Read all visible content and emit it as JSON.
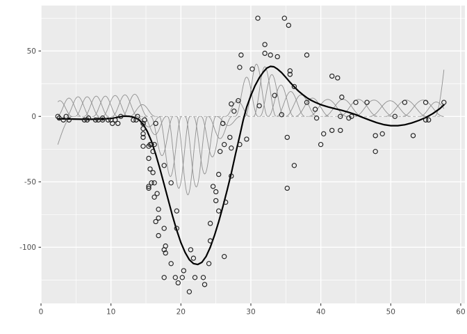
{
  "chart_data": {
    "type": "scatter",
    "title": "",
    "xlabel": "",
    "ylabel": "",
    "legend": false,
    "grid": true,
    "xlim": [
      0,
      60.6
    ],
    "ylim": [
      -142.9,
      84.7
    ],
    "x_ticks": [
      0,
      10,
      20,
      30,
      40,
      50,
      60
    ],
    "x_tick_labels": [
      "0",
      "10",
      "20",
      "30",
      "40",
      "50",
      "60"
    ],
    "x_minor_ticks": [
      5,
      15,
      25,
      35,
      45,
      55
    ],
    "y_ticks": [
      -100,
      -50,
      0,
      50
    ],
    "y_tick_labels": [
      "-100",
      "-50",
      "0",
      "50"
    ],
    "y_minor_ticks": [
      -125,
      -75,
      -25,
      25,
      75
    ],
    "colors": {
      "panel": "#ebebeb",
      "grid_major": "#ffffff",
      "grid_minor": "#f7f7f7",
      "point": "#1f1f1f",
      "smooth": "#000000",
      "basis": "#8f8f8f",
      "zero_line": "#aaaaaa",
      "tick_label": "#4d4d4d",
      "tick_mark": "#333333"
    },
    "series": [
      {
        "name": "observations",
        "kind": "points",
        "points": [
          [
            2.4,
            0.0
          ],
          [
            2.6,
            -1.3
          ],
          [
            3.2,
            -2.7
          ],
          [
            3.6,
            0.0
          ],
          [
            4.0,
            -2.7
          ],
          [
            6.2,
            -2.7
          ],
          [
            6.6,
            -2.7
          ],
          [
            6.8,
            -1.3
          ],
          [
            7.8,
            -2.7
          ],
          [
            8.2,
            -2.7
          ],
          [
            8.8,
            -1.3
          ],
          [
            8.8,
            -2.7
          ],
          [
            9.6,
            -2.7
          ],
          [
            10.0,
            -2.7
          ],
          [
            10.2,
            -5.4
          ],
          [
            10.6,
            -2.7
          ],
          [
            11.0,
            -5.4
          ],
          [
            11.4,
            0.0
          ],
          [
            13.2,
            -2.7
          ],
          [
            13.6,
            -2.7
          ],
          [
            13.8,
            0.0
          ],
          [
            14.6,
            -13.3
          ],
          [
            14.6,
            -5.4
          ],
          [
            14.6,
            -5.4
          ],
          [
            14.6,
            -9.3
          ],
          [
            14.6,
            -16.0
          ],
          [
            14.6,
            -22.8
          ],
          [
            14.8,
            -2.7
          ],
          [
            15.4,
            -22.8
          ],
          [
            15.4,
            -32.1
          ],
          [
            15.4,
            -53.5
          ],
          [
            15.4,
            -54.9
          ],
          [
            15.6,
            -40.2
          ],
          [
            15.6,
            -21.5
          ],
          [
            15.8,
            -21.5
          ],
          [
            15.8,
            -50.8
          ],
          [
            16.0,
            -42.9
          ],
          [
            16.0,
            -26.8
          ],
          [
            16.2,
            -21.5
          ],
          [
            16.2,
            -50.8
          ],
          [
            16.2,
            -61.7
          ],
          [
            16.4,
            -5.4
          ],
          [
            16.4,
            -80.4
          ],
          [
            16.6,
            -59.0
          ],
          [
            16.8,
            -71.0
          ],
          [
            16.8,
            -91.1
          ],
          [
            16.8,
            -77.7
          ],
          [
            17.6,
            -37.5
          ],
          [
            17.6,
            -85.6
          ],
          [
            17.6,
            -123.1
          ],
          [
            17.6,
            -101.9
          ],
          [
            17.8,
            -99.1
          ],
          [
            17.8,
            -104.4
          ],
          [
            18.6,
            -112.5
          ],
          [
            18.6,
            -50.8
          ],
          [
            19.2,
            -123.1
          ],
          [
            19.4,
            -85.6
          ],
          [
            19.4,
            -72.3
          ],
          [
            19.6,
            -127.2
          ],
          [
            20.2,
            -123.1
          ],
          [
            20.4,
            -117.9
          ],
          [
            21.2,
            -134.0
          ],
          [
            21.4,
            -101.9
          ],
          [
            21.8,
            -108.4
          ],
          [
            22.0,
            -123.1
          ],
          [
            23.2,
            -123.1
          ],
          [
            23.4,
            -128.5
          ],
          [
            24.0,
            -112.5
          ],
          [
            24.2,
            -95.1
          ],
          [
            24.2,
            -81.8
          ],
          [
            24.6,
            -53.5
          ],
          [
            25.0,
            -64.4
          ],
          [
            25.0,
            -57.6
          ],
          [
            25.4,
            -72.3
          ],
          [
            25.4,
            -44.3
          ],
          [
            25.6,
            -26.8
          ],
          [
            26.0,
            -5.4
          ],
          [
            26.2,
            -107.1
          ],
          [
            26.2,
            -21.5
          ],
          [
            26.4,
            -65.6
          ],
          [
            27.0,
            -16.0
          ],
          [
            27.2,
            -45.6
          ],
          [
            27.2,
            -24.2
          ],
          [
            27.2,
            9.5
          ],
          [
            27.6,
            4.0
          ],
          [
            28.2,
            12.0
          ],
          [
            28.4,
            -21.5
          ],
          [
            28.4,
            37.5
          ],
          [
            28.6,
            46.9
          ],
          [
            29.4,
            -17.4
          ],
          [
            30.2,
            36.2
          ],
          [
            31.0,
            75.0
          ],
          [
            31.2,
            8.1
          ],
          [
            32.0,
            54.9
          ],
          [
            32.0,
            48.2
          ],
          [
            32.8,
            46.9
          ],
          [
            33.4,
            16.0
          ],
          [
            33.8,
            45.6
          ],
          [
            34.4,
            1.3
          ],
          [
            34.8,
            75.0
          ],
          [
            35.2,
            -16.0
          ],
          [
            35.2,
            -54.9
          ],
          [
            35.4,
            69.6
          ],
          [
            35.6,
            34.8
          ],
          [
            35.6,
            32.1
          ],
          [
            36.2,
            -37.5
          ],
          [
            36.2,
            22.8
          ],
          [
            38.0,
            46.9
          ],
          [
            38.0,
            10.7
          ],
          [
            39.2,
            5.4
          ],
          [
            39.4,
            -1.3
          ],
          [
            40.0,
            -21.5
          ],
          [
            40.4,
            -13.3
          ],
          [
            41.6,
            30.8
          ],
          [
            41.6,
            -10.7
          ],
          [
            42.4,
            29.4
          ],
          [
            42.8,
            0.0
          ],
          [
            42.8,
            -10.7
          ],
          [
            43.0,
            14.7
          ],
          [
            44.0,
            -1.3
          ],
          [
            44.4,
            0.0
          ],
          [
            45.0,
            10.7
          ],
          [
            46.6,
            10.7
          ],
          [
            47.8,
            -26.8
          ],
          [
            47.8,
            -14.7
          ],
          [
            48.8,
            -13.3
          ],
          [
            50.6,
            0.0
          ],
          [
            52.0,
            10.7
          ],
          [
            53.2,
            -14.7
          ],
          [
            55.0,
            -2.7
          ],
          [
            55.0,
            10.7
          ],
          [
            55.4,
            -2.7
          ],
          [
            57.6,
            10.7
          ]
        ]
      },
      {
        "name": "smooth-fit",
        "kind": "line",
        "points": [
          [
            2.4,
            -1.8
          ],
          [
            4,
            -2.0
          ],
          [
            6,
            -2.2
          ],
          [
            8,
            -2.2
          ],
          [
            10,
            -1.6
          ],
          [
            11,
            -0.6
          ],
          [
            11.8,
            0.2
          ],
          [
            12.6,
            0.1
          ],
          [
            13.4,
            -0.8
          ],
          [
            14,
            -2.5
          ],
          [
            14.6,
            -6
          ],
          [
            15.2,
            -11.5
          ],
          [
            15.8,
            -19
          ],
          [
            16.4,
            -29
          ],
          [
            17,
            -40
          ],
          [
            17.6,
            -52
          ],
          [
            18.2,
            -64
          ],
          [
            18.8,
            -76
          ],
          [
            19.4,
            -87
          ],
          [
            20,
            -96.5
          ],
          [
            20.6,
            -104
          ],
          [
            21.2,
            -109.5
          ],
          [
            21.8,
            -112.5
          ],
          [
            22.4,
            -113.2
          ],
          [
            23,
            -111.5
          ],
          [
            23.6,
            -107
          ],
          [
            24.2,
            -100
          ],
          [
            24.8,
            -91
          ],
          [
            25.4,
            -80.5
          ],
          [
            26,
            -69
          ],
          [
            26.6,
            -56.5
          ],
          [
            27.2,
            -43.5
          ],
          [
            27.8,
            -29
          ],
          [
            28.4,
            -15
          ],
          [
            28.9,
            -3
          ],
          [
            29.4,
            7
          ],
          [
            30,
            16
          ],
          [
            30.6,
            23.5
          ],
          [
            31.2,
            29.5
          ],
          [
            31.8,
            34
          ],
          [
            32.3,
            37
          ],
          [
            32.8,
            38.2
          ],
          [
            33.3,
            37.9
          ],
          [
            33.8,
            36.2
          ],
          [
            34.4,
            33.4
          ],
          [
            35,
            29.8
          ],
          [
            35.6,
            26.1
          ],
          [
            36.2,
            22.6
          ],
          [
            36.8,
            19.4
          ],
          [
            37.4,
            16.7
          ],
          [
            38,
            14.3
          ],
          [
            38.6,
            12.4
          ],
          [
            39.2,
            10.8
          ],
          [
            40,
            9.0
          ],
          [
            41,
            7.3
          ],
          [
            42,
            5.9
          ],
          [
            43,
            4.6
          ],
          [
            44,
            3.1
          ],
          [
            45,
            1.3
          ],
          [
            46,
            -0.8
          ],
          [
            47,
            -2.9
          ],
          [
            48,
            -4.8
          ],
          [
            49,
            -6.3
          ],
          [
            50,
            -7.1
          ],
          [
            51,
            -7.1
          ],
          [
            52,
            -6.4
          ],
          [
            53,
            -5.0
          ],
          [
            54,
            -3.1
          ],
          [
            55,
            -0.9
          ],
          [
            56,
            2.1
          ],
          [
            57,
            5.9
          ],
          [
            57.6,
            8.8
          ]
        ]
      },
      {
        "name": "scaled-basis-functions",
        "kind": "bumps",
        "bumps": [
          [
            0.5,
            -40,
            4.0
          ],
          [
            2.7,
            12,
            1.7
          ],
          [
            4.0,
            14,
            1.7
          ],
          [
            5.3,
            15,
            1.7
          ],
          [
            6.6,
            15,
            1.7
          ],
          [
            7.9,
            15.5,
            1.7
          ],
          [
            9.2,
            15.5,
            1.7
          ],
          [
            10.6,
            16,
            1.8
          ],
          [
            12.0,
            16.5,
            1.8
          ],
          [
            13.4,
            17,
            1.8
          ],
          [
            14.5,
            9,
            1.8
          ],
          [
            15.4,
            -8,
            1.7
          ],
          [
            16.3,
            -14,
            1.6
          ],
          [
            17.3,
            -30,
            1.6
          ],
          [
            18.5,
            -46,
            1.6
          ],
          [
            19.7,
            -55,
            1.6
          ],
          [
            21.0,
            -60,
            1.6
          ],
          [
            22.2,
            -54,
            1.6
          ],
          [
            23.4,
            -44,
            1.6
          ],
          [
            24.5,
            -31,
            1.6
          ],
          [
            25.6,
            -17,
            1.7
          ],
          [
            26.8,
            -7,
            1.7
          ],
          [
            28.1,
            12,
            1.7
          ],
          [
            29.4,
            30,
            1.6
          ],
          [
            30.8,
            40,
            1.6
          ],
          [
            32.0,
            38,
            1.6
          ],
          [
            33.0,
            32,
            1.7
          ],
          [
            34.3,
            24,
            1.8
          ],
          [
            35.7,
            19,
            2.0
          ],
          [
            37.2,
            16.5,
            2.2
          ],
          [
            38.8,
            14,
            2.4
          ],
          [
            41.0,
            13,
            2.7
          ],
          [
            43.2,
            13,
            2.7
          ],
          [
            45.4,
            13,
            2.7
          ],
          [
            47.6,
            12.5,
            2.7
          ],
          [
            49.9,
            12,
            2.8
          ],
          [
            52.2,
            12.5,
            2.9
          ],
          [
            54.6,
            12.5,
            2.9
          ],
          [
            56.5,
            11,
            2.3
          ],
          [
            59.3,
            90,
            3.0
          ]
        ],
        "x_domain": [
          2.4,
          57.6
        ]
      },
      {
        "name": "zero-line",
        "kind": "dashed-hline",
        "y": 0,
        "x_range": [
          2.4,
          57.6
        ]
      }
    ]
  }
}
